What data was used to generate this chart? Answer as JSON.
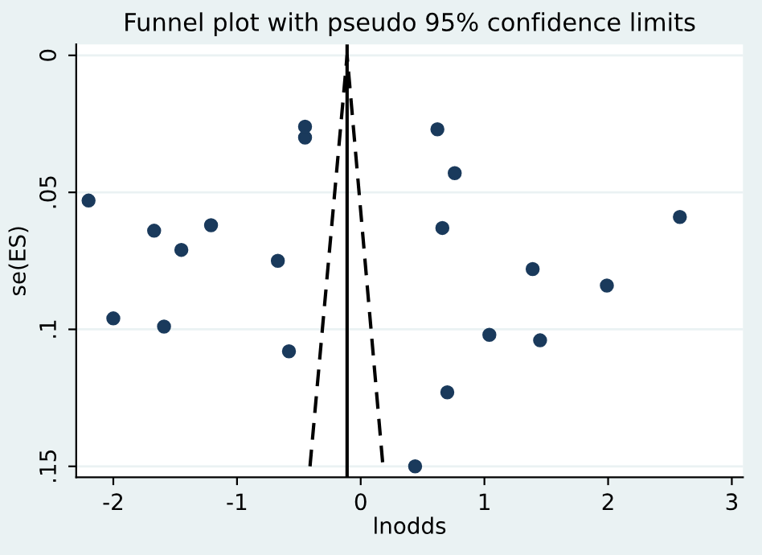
{
  "chart_data": {
    "type": "scatter",
    "title": "Funnel plot with pseudo 95% confidence limits",
    "xlabel": "lnodds",
    "ylabel": "se(ES)",
    "xlim": [
      -2.3,
      3.09
    ],
    "xticks": [
      {
        "value": -2,
        "label": "-2"
      },
      {
        "value": -1,
        "label": "-1"
      },
      0,
      1,
      2,
      3
    ],
    "ylim": [
      0.154,
      -0.004
    ],
    "yticks": [
      {
        "value": 0,
        "label": "0"
      },
      {
        "value": 0.05,
        "label": ".05"
      },
      {
        "value": 0.1,
        "label": ".1"
      },
      {
        "value": 0.15,
        "label": ".15"
      }
    ],
    "grid": "y",
    "legend": false,
    "ref_lines": [
      {
        "axis": "x",
        "value": -0.11,
        "color": "#000000",
        "line_style": "solid"
      }
    ],
    "series": [
      {
        "marker": "circle",
        "color": "#1a3a5c",
        "x": [
          -2.2,
          -1.67,
          -1.21,
          -1.45,
          -0.67,
          -0.45,
          -0.45,
          -2.0,
          -1.59,
          -0.58,
          0.62,
          0.76,
          0.66,
          2.58,
          1.39,
          1.99,
          1.04,
          1.45,
          0.7,
          0.44
        ],
        "values": [
          0.053,
          0.064,
          0.062,
          0.071,
          0.075,
          0.026,
          0.03,
          0.096,
          0.099,
          0.108,
          0.027,
          0.043,
          0.063,
          0.059,
          0.078,
          0.084,
          0.102,
          0.104,
          0.123,
          0.15
        ]
      },
      {
        "type": "line",
        "marker": "none",
        "color": "#000000",
        "line_style": "dashed",
        "x": [
          -0.41,
          -0.11,
          0.18
        ],
        "values": [
          0.15,
          0,
          0.15
        ]
      }
    ]
  }
}
